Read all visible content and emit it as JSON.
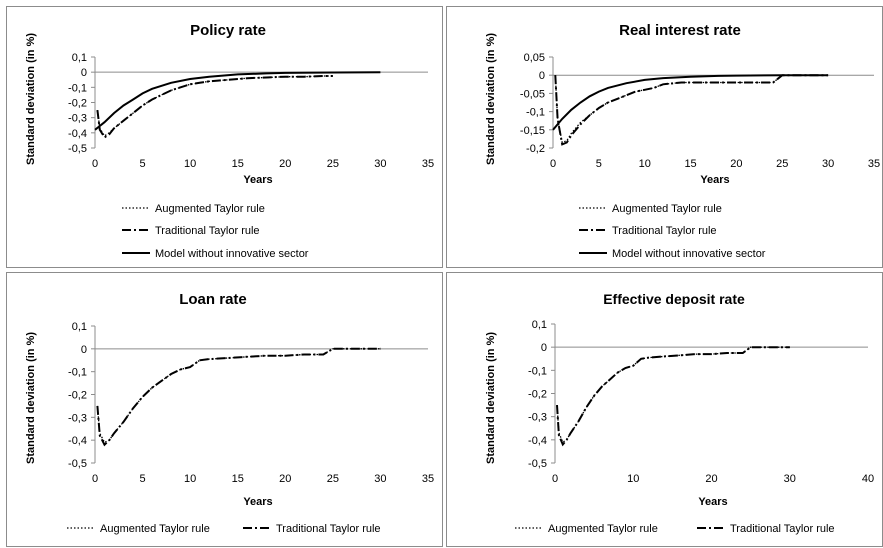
{
  "charts": [
    {
      "title": "Policy rate",
      "xlabel": "Years",
      "ylabel": "Standard deviation (in %)",
      "xlim": [
        0,
        35
      ],
      "ylim": [
        -0.5,
        0.1
      ],
      "xticks": [
        0,
        5,
        10,
        15,
        20,
        25,
        30,
        35
      ],
      "yticks": [
        0.1,
        0,
        -0.1,
        -0.2,
        -0.3,
        -0.4,
        -0.5
      ],
      "xtick_labels": [
        "0",
        "5",
        "10",
        "15",
        "20",
        "25",
        "30",
        "35"
      ],
      "ytick_labels": [
        "0,1",
        "0",
        "-0,1",
        "-0,2",
        "-0,3",
        "-0,4",
        "-0,5"
      ],
      "legend": [
        "Augmented Taylor rule",
        "Traditional Taylor rule",
        "Model without innovative sector"
      ]
    },
    {
      "title": "Real interest rate",
      "xlabel": "Years",
      "ylabel": "Standard deviation (in %)",
      "xlim": [
        0,
        35
      ],
      "ylim": [
        -0.2,
        0.05
      ],
      "xticks": [
        0,
        5,
        10,
        15,
        20,
        25,
        30,
        35
      ],
      "yticks": [
        0.05,
        0,
        -0.05,
        -0.1,
        -0.15,
        -0.2
      ],
      "xtick_labels": [
        "0",
        "5",
        "10",
        "15",
        "20",
        "25",
        "30",
        "35"
      ],
      "ytick_labels": [
        "0,05",
        "0",
        "-0,05",
        "-0,1",
        "-0,15",
        "-0,2"
      ],
      "legend": [
        "Augmented Taylor rule",
        "Traditional Taylor rule",
        "Model without innovative sector"
      ]
    },
    {
      "title": "Loan rate",
      "xlabel": "Years",
      "ylabel": "Standard deviation (in %)",
      "xlim": [
        0,
        35
      ],
      "ylim": [
        -0.5,
        0.1
      ],
      "xticks": [
        0,
        5,
        10,
        15,
        20,
        25,
        30,
        35
      ],
      "yticks": [
        0.1,
        0,
        -0.1,
        -0.2,
        -0.3,
        -0.4,
        -0.5
      ],
      "xtick_labels": [
        "0",
        "5",
        "10",
        "15",
        "20",
        "25",
        "30",
        "35"
      ],
      "ytick_labels": [
        "0,1",
        "0",
        "-0,1",
        "-0,2",
        "-0,3",
        "-0,4",
        "-0,5"
      ],
      "legend": [
        "Augmented Taylor rule",
        "Traditional Taylor rule"
      ]
    },
    {
      "title": "Effective deposit rate",
      "xlabel": "Years",
      "ylabel": "Standard deviation (in %)",
      "xlim": [
        0,
        40
      ],
      "ylim": [
        -0.5,
        0.1
      ],
      "xticks": [
        0,
        10,
        20,
        30,
        40
      ],
      "yticks": [
        0.1,
        0,
        -0.1,
        -0.2,
        -0.3,
        -0.4,
        -0.5
      ],
      "xtick_labels": [
        "0",
        "10",
        "20",
        "30",
        "40"
      ],
      "ytick_labels": [
        "0,1",
        "0",
        "-0,1",
        "-0,2",
        "-0,3",
        "-0,4",
        "-0,5"
      ],
      "legend": [
        "Augmented Taylor rule",
        "Traditional Taylor rule"
      ]
    }
  ],
  "chart_data": [
    {
      "type": "line",
      "title": "Policy rate",
      "xlabel": "Years",
      "ylabel": "Standard deviation (in %)",
      "xlim": [
        0,
        35
      ],
      "ylim": [
        -0.5,
        0.1
      ],
      "grid": false,
      "legend_position": "bottom",
      "series": [
        {
          "name": "Augmented Taylor rule",
          "style": "dotted",
          "x": [
            0.25,
            0.5,
            1,
            1.5,
            2,
            3,
            4,
            5,
            6,
            7,
            8,
            9,
            10,
            11,
            12,
            14,
            16,
            18,
            20,
            22,
            24,
            25
          ],
          "y": [
            -0.25,
            -0.37,
            -0.42,
            -0.4,
            -0.37,
            -0.32,
            -0.27,
            -0.22,
            -0.18,
            -0.15,
            -0.12,
            -0.1,
            -0.08,
            -0.07,
            -0.06,
            -0.05,
            -0.04,
            -0.035,
            -0.03,
            -0.03,
            -0.025,
            -0.025
          ]
        },
        {
          "name": "Traditional Taylor rule",
          "style": "dash-dot",
          "x": [
            0.25,
            0.5,
            1,
            1.5,
            2,
            3,
            4,
            5,
            6,
            7,
            8,
            9,
            10,
            11,
            12,
            14,
            16,
            18,
            20,
            22,
            24,
            25
          ],
          "y": [
            -0.25,
            -0.38,
            -0.43,
            -0.41,
            -0.37,
            -0.32,
            -0.27,
            -0.22,
            -0.18,
            -0.15,
            -0.12,
            -0.1,
            -0.08,
            -0.07,
            -0.06,
            -0.05,
            -0.04,
            -0.035,
            -0.03,
            -0.03,
            -0.025,
            -0.025
          ]
        },
        {
          "name": "Model without innovative sector",
          "style": "solid",
          "x": [
            0,
            1,
            2,
            3,
            4,
            5,
            6,
            8,
            10,
            12,
            15,
            18,
            20,
            25,
            30
          ],
          "y": [
            -0.38,
            -0.33,
            -0.27,
            -0.22,
            -0.18,
            -0.14,
            -0.11,
            -0.07,
            -0.045,
            -0.03,
            -0.015,
            -0.008,
            -0.005,
            -0.002,
            0
          ]
        }
      ]
    },
    {
      "type": "line",
      "title": "Real interest rate",
      "xlabel": "Years",
      "ylabel": "Standard deviation (in %)",
      "xlim": [
        0,
        35
      ],
      "ylim": [
        -0.2,
        0.05
      ],
      "grid": false,
      "legend_position": "bottom",
      "series": [
        {
          "name": "Augmented Taylor rule",
          "style": "dotted",
          "x": [
            0.25,
            0.5,
            1,
            1.5,
            2,
            3,
            4,
            5,
            6,
            7,
            8,
            9,
            10,
            11,
            12,
            14,
            16,
            18,
            20,
            22,
            24,
            25,
            30
          ],
          "y": [
            0,
            -0.12,
            -0.185,
            -0.18,
            -0.16,
            -0.13,
            -0.11,
            -0.09,
            -0.075,
            -0.065,
            -0.055,
            -0.045,
            -0.04,
            -0.035,
            -0.025,
            -0.02,
            -0.02,
            -0.02,
            -0.02,
            -0.02,
            -0.02,
            0,
            0
          ]
        },
        {
          "name": "Traditional Taylor rule",
          "style": "dash-dot",
          "x": [
            0.25,
            0.5,
            1,
            1.5,
            2,
            3,
            4,
            5,
            6,
            7,
            8,
            9,
            10,
            11,
            12,
            14,
            16,
            18,
            20,
            22,
            24,
            25,
            30
          ],
          "y": [
            0,
            -0.12,
            -0.19,
            -0.185,
            -0.165,
            -0.135,
            -0.11,
            -0.09,
            -0.075,
            -0.065,
            -0.055,
            -0.045,
            -0.04,
            -0.035,
            -0.025,
            -0.02,
            -0.02,
            -0.02,
            -0.02,
            -0.02,
            -0.02,
            0,
            0
          ]
        },
        {
          "name": "Model without innovative sector",
          "style": "solid",
          "x": [
            0,
            1,
            2,
            3,
            4,
            5,
            6,
            8,
            10,
            12,
            15,
            18,
            20,
            25,
            30
          ],
          "y": [
            -0.15,
            -0.12,
            -0.095,
            -0.075,
            -0.058,
            -0.045,
            -0.035,
            -0.022,
            -0.013,
            -0.008,
            -0.004,
            -0.002,
            -0.001,
            0,
            0
          ]
        }
      ]
    },
    {
      "type": "line",
      "title": "Loan rate",
      "xlabel": "Years",
      "ylabel": "Standard deviation (in %)",
      "xlim": [
        0,
        35
      ],
      "ylim": [
        -0.5,
        0.1
      ],
      "grid": false,
      "legend_position": "bottom",
      "series": [
        {
          "name": "Augmented Taylor rule",
          "style": "dotted",
          "x": [
            0.25,
            0.5,
            1,
            1.5,
            2,
            3,
            4,
            5,
            6,
            7,
            8,
            9,
            10,
            11,
            12,
            14,
            16,
            18,
            20,
            22,
            24,
            25,
            30
          ],
          "y": [
            -0.25,
            -0.37,
            -0.41,
            -0.4,
            -0.37,
            -0.32,
            -0.26,
            -0.21,
            -0.17,
            -0.14,
            -0.11,
            -0.09,
            -0.08,
            -0.05,
            -0.045,
            -0.04,
            -0.035,
            -0.03,
            -0.03,
            -0.025,
            -0.025,
            0,
            0
          ]
        },
        {
          "name": "Traditional Taylor rule",
          "style": "dash-dot",
          "x": [
            0.25,
            0.5,
            1,
            1.5,
            2,
            3,
            4,
            5,
            6,
            7,
            8,
            9,
            10,
            11,
            12,
            14,
            16,
            18,
            20,
            22,
            24,
            25,
            30
          ],
          "y": [
            -0.25,
            -0.38,
            -0.42,
            -0.4,
            -0.37,
            -0.32,
            -0.26,
            -0.21,
            -0.17,
            -0.14,
            -0.11,
            -0.09,
            -0.08,
            -0.05,
            -0.045,
            -0.04,
            -0.035,
            -0.03,
            -0.03,
            -0.025,
            -0.025,
            0,
            0
          ]
        }
      ]
    },
    {
      "type": "line",
      "title": "Effective deposit rate",
      "xlabel": "Years",
      "ylabel": "Standard deviation (in %)",
      "xlim": [
        0,
        40
      ],
      "ylim": [
        -0.5,
        0.1
      ],
      "grid": false,
      "legend_position": "bottom",
      "series": [
        {
          "name": "Augmented Taylor rule",
          "style": "dotted",
          "x": [
            0.25,
            0.5,
            1,
            1.5,
            2,
            3,
            4,
            5,
            6,
            7,
            8,
            9,
            10,
            11,
            12,
            14,
            16,
            18,
            20,
            22,
            24,
            25,
            30
          ],
          "y": [
            -0.25,
            -0.37,
            -0.41,
            -0.4,
            -0.37,
            -0.32,
            -0.26,
            -0.21,
            -0.17,
            -0.14,
            -0.11,
            -0.09,
            -0.08,
            -0.05,
            -0.045,
            -0.04,
            -0.035,
            -0.03,
            -0.03,
            -0.025,
            -0.025,
            0,
            0
          ]
        },
        {
          "name": "Traditional Taylor rule",
          "style": "dash-dot",
          "x": [
            0.25,
            0.5,
            1,
            1.5,
            2,
            3,
            4,
            5,
            6,
            7,
            8,
            9,
            10,
            11,
            12,
            14,
            16,
            18,
            20,
            22,
            24,
            25,
            30
          ],
          "y": [
            -0.25,
            -0.38,
            -0.42,
            -0.4,
            -0.37,
            -0.32,
            -0.26,
            -0.21,
            -0.17,
            -0.14,
            -0.11,
            -0.09,
            -0.08,
            -0.05,
            -0.045,
            -0.04,
            -0.035,
            -0.03,
            -0.03,
            -0.025,
            -0.025,
            0,
            0
          ]
        }
      ]
    }
  ]
}
